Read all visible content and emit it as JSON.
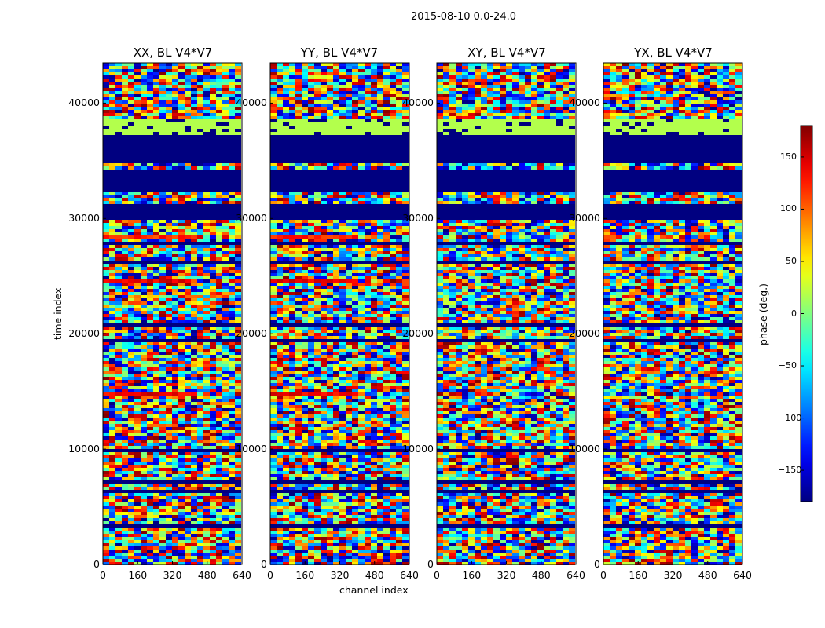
{
  "suptitle": "2015-08-10 0.0-24.0",
  "chart_data": {
    "type": "heatmap",
    "panels": [
      {
        "title": "XX, BL V4*V7",
        "pol": "XX"
      },
      {
        "title": "YY, BL V4*V7",
        "pol": "YY"
      },
      {
        "title": "XY, BL V4*V7",
        "pol": "XY"
      },
      {
        "title": "YX, BL V4*V7",
        "pol": "YX"
      }
    ],
    "xlabel": "channel index",
    "ylabel": "time index",
    "xlim": [
      0,
      640
    ],
    "ylim": [
      0,
      43500
    ],
    "xticks": [
      "0",
      "160",
      "320",
      "480",
      "640"
    ],
    "xtick_values": [
      0,
      160,
      320,
      480,
      640
    ],
    "yticks": [
      "0",
      "10000",
      "20000",
      "30000",
      "40000"
    ],
    "ytick_values": [
      0,
      10000,
      20000,
      30000,
      40000
    ],
    "colorbar": {
      "label": "phase (deg.)",
      "range": [
        -180,
        180
      ],
      "ticks": [
        "−150",
        "−100",
        "−50",
        "0",
        "50",
        "100",
        "150"
      ],
      "tick_values": [
        -150,
        -100,
        -50,
        0,
        50,
        100,
        150
      ],
      "colormap": "jet"
    }
  }
}
